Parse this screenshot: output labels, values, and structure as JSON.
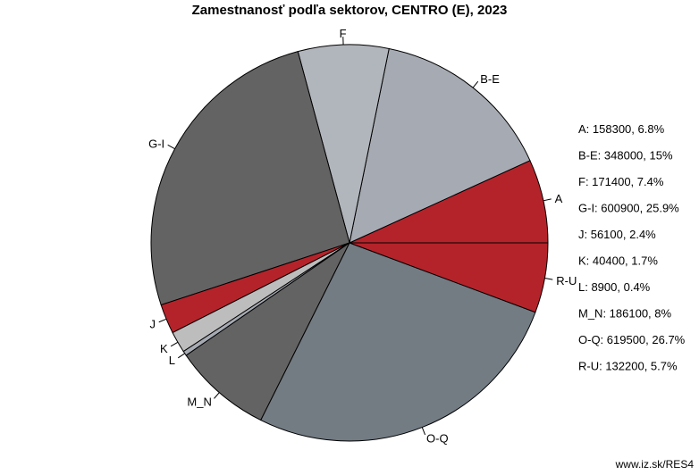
{
  "chart_data": {
    "type": "pie",
    "title": "Zamestnanosť podľa sektorov, CENTRO (E), 2023",
    "slices": [
      {
        "label": "A",
        "value": 158300,
        "percent": "6.8%",
        "color": "#b5232a"
      },
      {
        "label": "B-E",
        "value": 348000,
        "percent": "15%",
        "color": "#a6abb3"
      },
      {
        "label": "F",
        "value": 171400,
        "percent": "7.4%",
        "color": "#b1b5bc"
      },
      {
        "label": "G-I",
        "value": 600900,
        "percent": "25.9%",
        "color": "#636363"
      },
      {
        "label": "J",
        "value": 56100,
        "percent": "2.4%",
        "color": "#b5232a"
      },
      {
        "label": "K",
        "value": 40400,
        "percent": "1.7%",
        "color": "#bdbdbd"
      },
      {
        "label": "L",
        "value": 8900,
        "percent": "0.4%",
        "color": "#a6abb3"
      },
      {
        "label": "M_N",
        "value": 186100,
        "percent": "8%",
        "color": "#636363"
      },
      {
        "label": "O-Q",
        "value": 619500,
        "percent": "26.7%",
        "color": "#737b83"
      },
      {
        "label": "R-U",
        "value": 132200,
        "percent": "5.7%",
        "color": "#b5232a"
      }
    ],
    "legend": [
      "A: 158300, 6.8%",
      "B-E: 348000, 15%",
      "F: 171400, 7.4%",
      "G-I: 600900, 25.9%",
      "J: 56100, 2.4%",
      "K: 40400, 1.7%",
      "L: 8900, 0.4%",
      "M_N: 186100, 8%",
      "O-Q: 619500, 26.7%",
      "R-U: 132200, 5.7%"
    ],
    "legend_position": "right"
  },
  "footer": "www.iz.sk/RES4"
}
